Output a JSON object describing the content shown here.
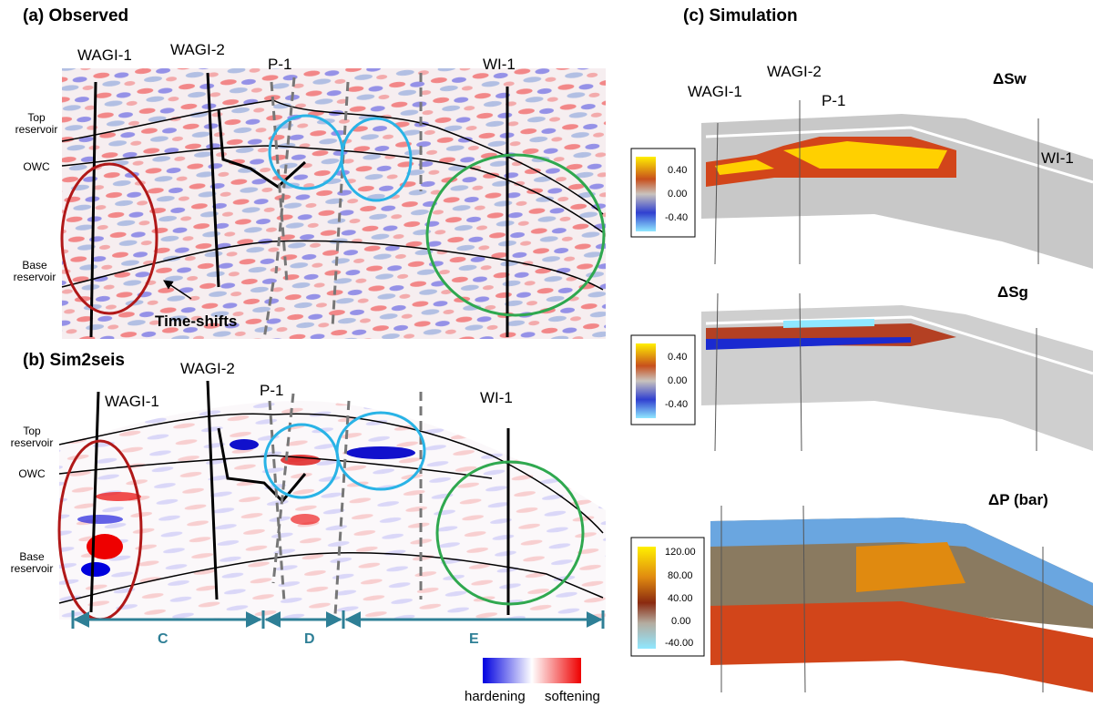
{
  "panel_a": {
    "title": "(a) Observed",
    "wells": [
      "WAGI-1",
      "WAGI-2",
      "P-1",
      "WI-1"
    ],
    "horizons": [
      "Top reservoir",
      "OWC",
      "Base reservoir"
    ],
    "annotation": "Time-shifts"
  },
  "panel_b": {
    "title": "(b) Sim2seis",
    "wells": [
      "WAGI-1",
      "WAGI-2",
      "P-1",
      "WI-1"
    ],
    "horizons": [
      "Top reservoir",
      "OWC",
      "Base reservoir"
    ],
    "zones": [
      "C",
      "D",
      "E"
    ],
    "legend": [
      "hardening",
      "softening"
    ]
  },
  "panel_c": {
    "title": "(c) Simulation",
    "wells": [
      "WAGI-1",
      "WAGI-2",
      "P-1",
      "WI-1"
    ],
    "maps": [
      {
        "label": "ΔSw",
        "colorbar": [
          "0.40",
          "0.00",
          "-0.40"
        ]
      },
      {
        "label": "ΔSg",
        "colorbar": [
          "0.40",
          "0.00",
          "-0.40"
        ]
      },
      {
        "label": "ΔP (bar)",
        "colorbar": [
          "120.00",
          "80.00",
          "40.00",
          "0.00",
          "-40.00"
        ]
      }
    ]
  }
}
